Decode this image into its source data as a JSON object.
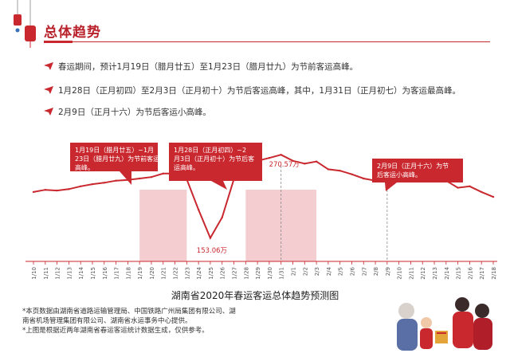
{
  "header": {
    "title": "总体趋势"
  },
  "bullets": [
    "春运期间，预计1月19日（腊月廿五）至1月23日（腊月廿九）为节前客运高峰。",
    "1月28日（正月初四）至2月3日（正月初十）为节后客运高峰，其中，1月31日（正月初七）为客运最高峰。",
    "2月9日（正月十六）为节后客运小高峰。"
  ],
  "chart_data": {
    "type": "line",
    "title": "湖南省2020年春运客运总体趋势预测图",
    "categories": [
      "1/10",
      "1/11",
      "1/12",
      "1/13",
      "1/14",
      "1/15",
      "1/16",
      "1/17",
      "1/18",
      "1/19",
      "1/20",
      "1/21",
      "1/22",
      "1/23",
      "1/24",
      "1/25",
      "1/26",
      "1/27",
      "1/28",
      "1/29",
      "1/30",
      "1/31",
      "2/1",
      "2/2",
      "2/3",
      "2/4",
      "2/5",
      "2/6",
      "2/7",
      "2/8",
      "2/9",
      "2/10",
      "2/11",
      "2/12",
      "2/13",
      "2/14",
      "2/15",
      "2/16",
      "2/17",
      "2/18"
    ],
    "values": [
      218,
      221,
      220,
      222,
      226,
      229,
      231,
      234,
      235,
      237,
      239,
      244,
      244,
      236,
      193,
      153.06,
      182,
      236,
      257,
      262,
      266,
      270.57,
      262,
      258,
      261,
      250,
      248,
      243,
      237,
      234,
      248,
      246,
      246,
      248,
      242,
      234,
      224,
      226,
      218,
      211
    ],
    "ylim": [
      120,
      300
    ],
    "highlight_ranges": [
      [
        "1/19",
        "1/23"
      ],
      [
        "1/28",
        "2/3"
      ]
    ],
    "marker_lines": [
      "1/31",
      "2/9"
    ],
    "data_labels": [
      {
        "category": "1/31",
        "text": "270.57万"
      },
      {
        "category": "1/25",
        "text": "153.06万"
      }
    ],
    "callouts": [
      {
        "text": "1月19日（腊月廿五）~1月23日（腊月廿九）为节前客运高峰。"
      },
      {
        "text": "1月28日（正月初四）~2月3日（正月初十）为节后客运高峰。"
      },
      {
        "text": "2月9日（正月十六）为节后客运小高峰。"
      }
    ],
    "colors": {
      "line": "#c9282f",
      "band": "#f4cdd0",
      "callout": "#c9282f",
      "axis": "#c9282f"
    }
  },
  "notes": {
    "lines": [
      "*本页数据由湖南省道路运输管理局、中国铁路广州局集团有限公司、湖",
      "南省机场管理集团有限公司、湖南省水运事务中心提供。",
      "*上图是根据近两年湖南省春运客运统计数据生成，仅供参考。"
    ]
  }
}
